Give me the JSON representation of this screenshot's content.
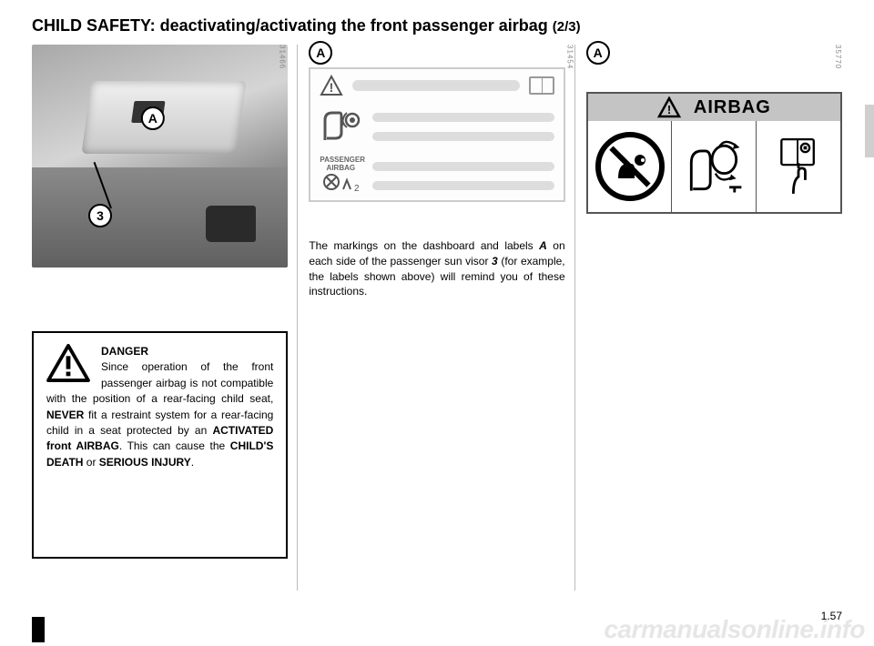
{
  "title": {
    "main": "CHILD SAFETY:  deactivating/activating the front passenger airbag ",
    "sub": "(2/3)"
  },
  "markers": {
    "A": "A",
    "three": "3"
  },
  "image_ids": {
    "col1": "31466",
    "col2": "31454",
    "col3": "35770"
  },
  "col2": {
    "passenger_label_line1": "PASSENGER",
    "passenger_label_line2": "AIRBAG",
    "body_text": "The markings on the dashboard and labels <b><i>A</i></b> on each side of the passenger sun visor <b><i>3</i></b> (for example, the labels shown above) will remind you of these instructions."
  },
  "warning": {
    "heading": "DANGER",
    "body": "Since operation of the front passenger airbag is not compatible with the position of a rear-facing child seat, <b>NEVER</b> fit a restraint system for a rear-facing child in a seat protected by an <b>ACTIVATED front AIRBAG</b>. This can cause the <b>CHILD'S DEATH</b> or <b>SERIOUS INJURY</b>."
  },
  "airbag_panel": {
    "header": "AIRBAG"
  },
  "footer": {
    "page_number": "1.57",
    "watermark": "carmanualsonline.info"
  },
  "colors": {
    "border_gray": "#bbbbbb",
    "panel_gray": "#c4c4c4",
    "line_gray": "#dddddd",
    "watermark_gray": "#e6e6e6",
    "text": "#000000"
  }
}
